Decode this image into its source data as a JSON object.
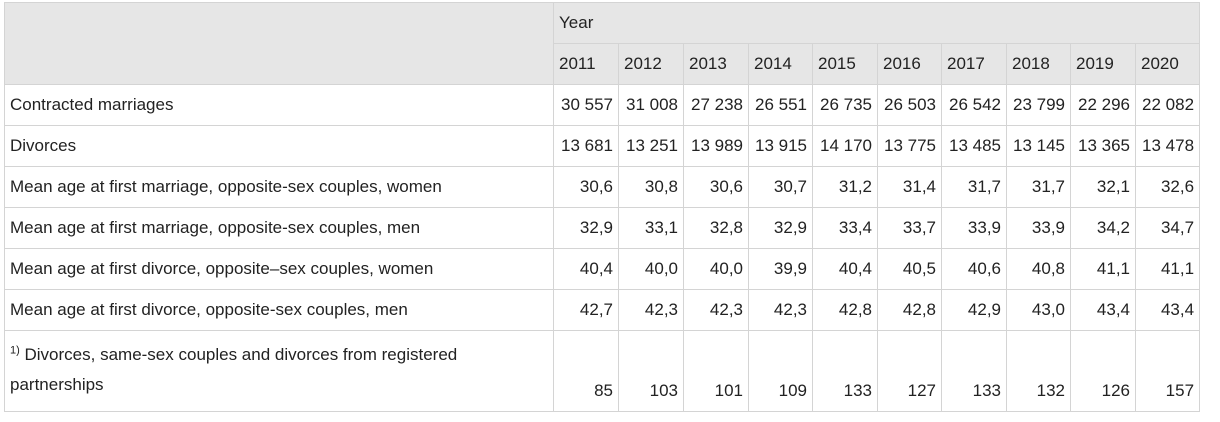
{
  "header": {
    "group_label": "Year",
    "years": [
      "2011",
      "2012",
      "2013",
      "2014",
      "2015",
      "2016",
      "2017",
      "2018",
      "2019",
      "2020"
    ]
  },
  "rows": [
    {
      "label": "Contracted marriages",
      "values": [
        "30 557",
        "31 008",
        "27 238",
        "26 551",
        "26 735",
        "26 503",
        "26 542",
        "23 799",
        "22 296",
        "22 082"
      ]
    },
    {
      "label": "Divorces",
      "values": [
        "13 681",
        "13 251",
        "13 989",
        "13 915",
        "14 170",
        "13 775",
        "13 485",
        "13 145",
        "13 365",
        "13 478"
      ]
    },
    {
      "label": "Mean age at first marriage, opposite-sex couples, women",
      "values": [
        "30,6",
        "30,8",
        "30,6",
        "30,7",
        "31,2",
        "31,4",
        "31,7",
        "31,7",
        "32,1",
        "32,6"
      ]
    },
    {
      "label": "Mean age at first marriage, opposite-sex couples, men",
      "values": [
        "32,9",
        "33,1",
        "32,8",
        "32,9",
        "33,4",
        "33,7",
        "33,9",
        "33,9",
        "34,2",
        "34,7"
      ]
    },
    {
      "label": "Mean age at first divorce, opposite–sex couples, women",
      "values": [
        "40,4",
        "40,0",
        "40,0",
        "39,9",
        "40,4",
        "40,5",
        "40,6",
        "40,8",
        "41,1",
        "41,1"
      ]
    },
    {
      "label": "Mean age at first divorce, opposite-sex couples, men",
      "values": [
        "42,7",
        "42,3",
        "42,3",
        "42,3",
        "42,8",
        "42,8",
        "42,9",
        "43,0",
        "43,4",
        "43,4"
      ]
    }
  ],
  "footnote_row": {
    "marker": "1)",
    "label": " Divorces, same-sex couples and divorces from registered partnerships",
    "values": [
      "85",
      "103",
      "101",
      "109",
      "133",
      "127",
      "133",
      "132",
      "126",
      "157"
    ]
  }
}
